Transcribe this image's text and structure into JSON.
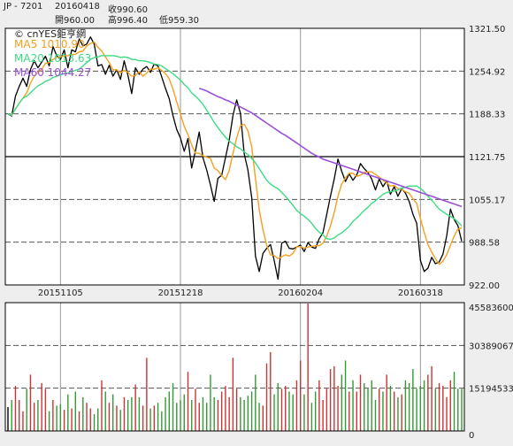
{
  "header": {
    "symbol": "JP - 7201",
    "date": "20160418",
    "close": "收990.60",
    "open": "開960.00",
    "high": "高996.40",
    "low": "低959.30"
  },
  "watermark": "© cnYES鉅亨網",
  "colors": {
    "price": "#000000",
    "ma5": "#f5a020",
    "ma20": "#3ddc84",
    "ma60": "#9a4fd8",
    "vol_up": "#cc3333",
    "vol_down": "#339933",
    "vol_flat": "#000000",
    "background": "#ffffff",
    "grid": "#777777"
  },
  "legend": [
    {
      "key": "ma5",
      "label": "MA5 1010.90"
    },
    {
      "key": "ma20",
      "label": "MA20 1013.63"
    },
    {
      "key": "ma60",
      "label": "MA60 1044.27"
    }
  ],
  "chart_data": [
    {
      "type": "line",
      "name": "price",
      "ylim": [
        922.0,
        1321.5
      ],
      "y_ticks": [
        "1321.50",
        "1254.92",
        "1188.33",
        "1121.75",
        "1055.17",
        "988.58",
        "922.00"
      ],
      "x_ticks": [
        "20151105",
        "20151218",
        "20160204",
        "20160318"
      ],
      "grid": true,
      "series": [
        {
          "key": "price",
          "values": [
            1188,
            1185,
            1216,
            1231,
            1244,
            1231,
            1257,
            1271,
            1260,
            1269,
            1278,
            1263,
            1293,
            1279,
            1273,
            1288,
            1260,
            1288,
            1285,
            1305,
            1294,
            1297,
            1308,
            1297,
            1263,
            1265,
            1250,
            1264,
            1247,
            1257,
            1242,
            1271,
            1248,
            1220,
            1260,
            1250,
            1258,
            1262,
            1253,
            1266,
            1263,
            1246,
            1228,
            1212,
            1186,
            1164,
            1151,
            1130,
            1150,
            1104,
            1131,
            1160,
            1120,
            1101,
            1078,
            1052,
            1088,
            1093,
            1120,
            1147,
            1186,
            1210,
            1189,
            1126,
            1101,
            1058,
            967,
            943,
            971,
            979,
            985,
            960,
            931,
            987,
            990,
            979,
            978,
            981,
            984,
            974,
            988,
            981,
            979,
            994,
            1003,
            1032,
            1060,
            1087,
            1118,
            1099,
            1083,
            1095,
            1085,
            1093,
            1111,
            1103,
            1097,
            1087,
            1070,
            1087,
            1075,
            1084,
            1063,
            1075,
            1060,
            1072,
            1065,
            1052,
            1032,
            1018,
            960,
            943,
            948,
            965,
            955,
            958,
            970,
            998,
            1040,
            1024,
            1014,
            990
          ]
        },
        {
          "key": "ma5",
          "values": [
            1188,
            1186,
            1196,
            1205,
            1213,
            1221,
            1236,
            1247,
            1253,
            1258,
            1267,
            1268,
            1273,
            1276,
            1277,
            1279,
            1279,
            1281,
            1281,
            1285,
            1286,
            1294,
            1298,
            1300,
            1292,
            1286,
            1277,
            1268,
            1257,
            1257,
            1252,
            1256,
            1253,
            1247,
            1248,
            1254,
            1247,
            1252,
            1258,
            1258,
            1260,
            1256,
            1251,
            1243,
            1227,
            1207,
            1188,
            1169,
            1156,
            1140,
            1127,
            1127,
            1123,
            1121,
            1119,
            1104,
            1100,
            1092,
            1086,
            1100,
            1127,
            1151,
            1170,
            1172,
            1162,
            1137,
            1088,
            1039,
            1008,
            984,
            969,
            968,
            963,
            966,
            969,
            967,
            971,
            981,
            982,
            979,
            981,
            982,
            983,
            983,
            987,
            998,
            1014,
            1035,
            1060,
            1079,
            1089,
            1096,
            1096,
            1091,
            1093,
            1097,
            1098,
            1098,
            1094,
            1090,
            1085,
            1081,
            1076,
            1077,
            1072,
            1071,
            1067,
            1065,
            1056,
            1049,
            1025,
            1004,
            985,
            973,
            963,
            954,
            959,
            969,
            984,
            998,
            1009,
            1011
          ]
        },
        {
          "key": "ma20",
          "values": [
            1188,
            1186,
            1196,
            1205,
            1213,
            1216,
            1221,
            1227,
            1232,
            1235,
            1239,
            1241,
            1245,
            1247,
            1249,
            1251,
            1252,
            1254,
            1256,
            1258,
            1263,
            1268,
            1273,
            1276,
            1277,
            1279,
            1279,
            1279,
            1279,
            1278,
            1276,
            1277,
            1276,
            1273,
            1273,
            1271,
            1271,
            1270,
            1268,
            1266,
            1265,
            1263,
            1259,
            1255,
            1251,
            1246,
            1241,
            1234,
            1229,
            1221,
            1216,
            1210,
            1203,
            1194,
            1185,
            1175,
            1167,
            1159,
            1152,
            1146,
            1142,
            1137,
            1134,
            1129,
            1125,
            1119,
            1112,
            1103,
            1094,
            1085,
            1079,
            1075,
            1072,
            1066,
            1060,
            1053,
            1046,
            1038,
            1033,
            1029,
            1024,
            1018,
            1010,
            1004,
            1000,
            994,
            993,
            995,
            1000,
            1003,
            1008,
            1013,
            1021,
            1026,
            1032,
            1038,
            1043,
            1049,
            1053,
            1058,
            1063,
            1066,
            1067,
            1068,
            1070,
            1073,
            1074,
            1076,
            1076,
            1076,
            1072,
            1067,
            1060,
            1054,
            1047,
            1040,
            1036,
            1032,
            1029,
            1025,
            1020,
            1014
          ]
        },
        {
          "key": "ma60",
          "values": [
            null,
            null,
            null,
            null,
            null,
            null,
            null,
            null,
            null,
            null,
            null,
            null,
            null,
            null,
            null,
            null,
            null,
            null,
            null,
            null,
            null,
            null,
            null,
            null,
            null,
            null,
            null,
            null,
            null,
            null,
            null,
            null,
            null,
            null,
            null,
            null,
            null,
            null,
            null,
            null,
            null,
            null,
            null,
            null,
            null,
            null,
            null,
            null,
            null,
            null,
            null,
            1228,
            1226,
            1224,
            1221,
            1218,
            1215,
            1213,
            1210,
            1208,
            1205,
            1202,
            1199,
            1196,
            1193,
            1190,
            1186,
            1182,
            1178,
            1174,
            1170,
            1166,
            1162,
            1158,
            1155,
            1151,
            1147,
            1143,
            1139,
            1135,
            1131,
            1127,
            1124,
            1121,
            1118,
            1116,
            1114,
            1112,
            1110,
            1108,
            1106,
            1104,
            1102,
            1100,
            1098,
            1096,
            1094,
            1092,
            1090,
            1088,
            1086,
            1084,
            1082,
            1080,
            1078,
            1076,
            1074,
            1072,
            1070,
            1068,
            1066,
            1064,
            1062,
            1060,
            1058,
            1056,
            1054,
            1052,
            1050,
            1048,
            1046,
            1044
          ]
        }
      ]
    },
    {
      "type": "bar",
      "name": "volume",
      "ylim": [
        0,
        45583600
      ],
      "y_ticks": [
        "45583600",
        "30389067",
        "15194533",
        "0"
      ],
      "values": [
        8500000,
        11000000,
        16000000,
        11000000,
        7000000,
        15000000,
        20000000,
        10000000,
        11000000,
        17000000,
        15000000,
        7000000,
        11000000,
        9000000,
        9500000,
        7500000,
        13000000,
        8000000,
        14000000,
        7000000,
        12000000,
        10000000,
        8000000,
        6000000,
        8000000,
        18000000,
        14000000,
        10000000,
        13000000,
        9000000,
        7500000,
        12000000,
        11000000,
        12000000,
        16500000,
        12000000,
        9000000,
        26000000,
        8000000,
        9000000,
        10000000,
        7000000,
        12000000,
        14000000,
        17000000,
        10000000,
        11000000,
        13000000,
        21000000,
        11000000,
        15000000,
        10000000,
        12000000,
        10000000,
        20000000,
        12000000,
        11000000,
        14000000,
        16000000,
        12000000,
        26000000,
        15000000,
        12000000,
        11000000,
        12500000,
        14000000,
        20000000,
        10000000,
        9000000,
        24000000,
        28000000,
        13000000,
        17000000,
        15000000,
        16000000,
        14000000,
        13000000,
        18000000,
        25000000,
        13000000,
        47000000,
        10000000,
        14000000,
        18000000,
        11000000,
        15000000,
        22000000,
        23000000,
        16000000,
        20000000,
        25000000,
        14000000,
        18000000,
        14000000,
        20000000,
        17000000,
        15000000,
        18000000,
        11000000,
        15000000,
        14000000,
        20000000,
        16000000,
        14000000,
        12000000,
        13000000,
        18000000,
        17000000,
        22000000,
        15000000,
        16000000,
        18000000,
        20000000,
        23000000,
        15000000,
        17000000,
        16000000,
        12000000,
        18000000,
        21000000,
        15000000,
        15000000
      ]
    }
  ]
}
